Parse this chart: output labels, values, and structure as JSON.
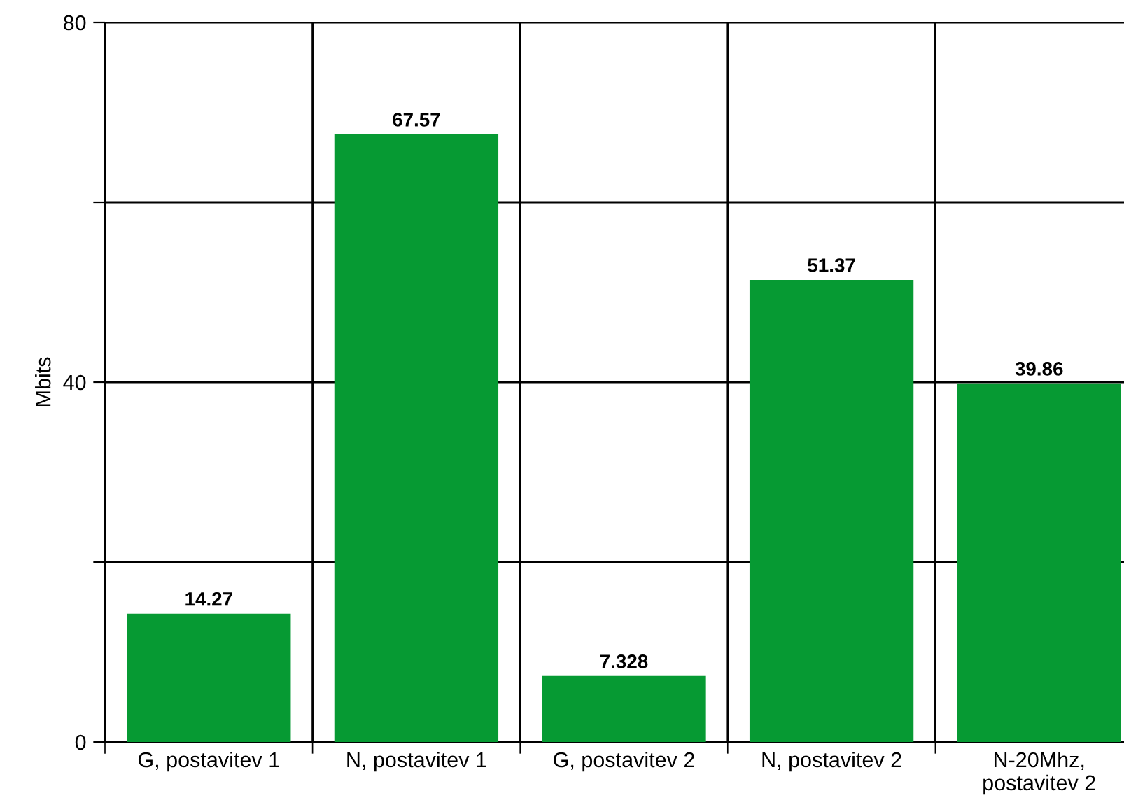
{
  "chart_data": {
    "type": "bar",
    "ylabel": "Mbits",
    "categories": [
      "G, postavitev 1",
      "N, postavitev 1",
      "G, postavitev 2",
      "N, postavitev 2",
      "N-20Mhz,\npostavitev 2"
    ],
    "values": [
      14.27,
      67.57,
      7.328,
      51.37,
      39.86
    ],
    "color": "#069a33",
    "ylim": [
      0,
      80
    ],
    "yticks": [
      0,
      {
        "value": 20,
        "label": null
      },
      40,
      {
        "value": 60,
        "label": null
      },
      80
    ],
    "grid": true,
    "data_labels": true
  }
}
